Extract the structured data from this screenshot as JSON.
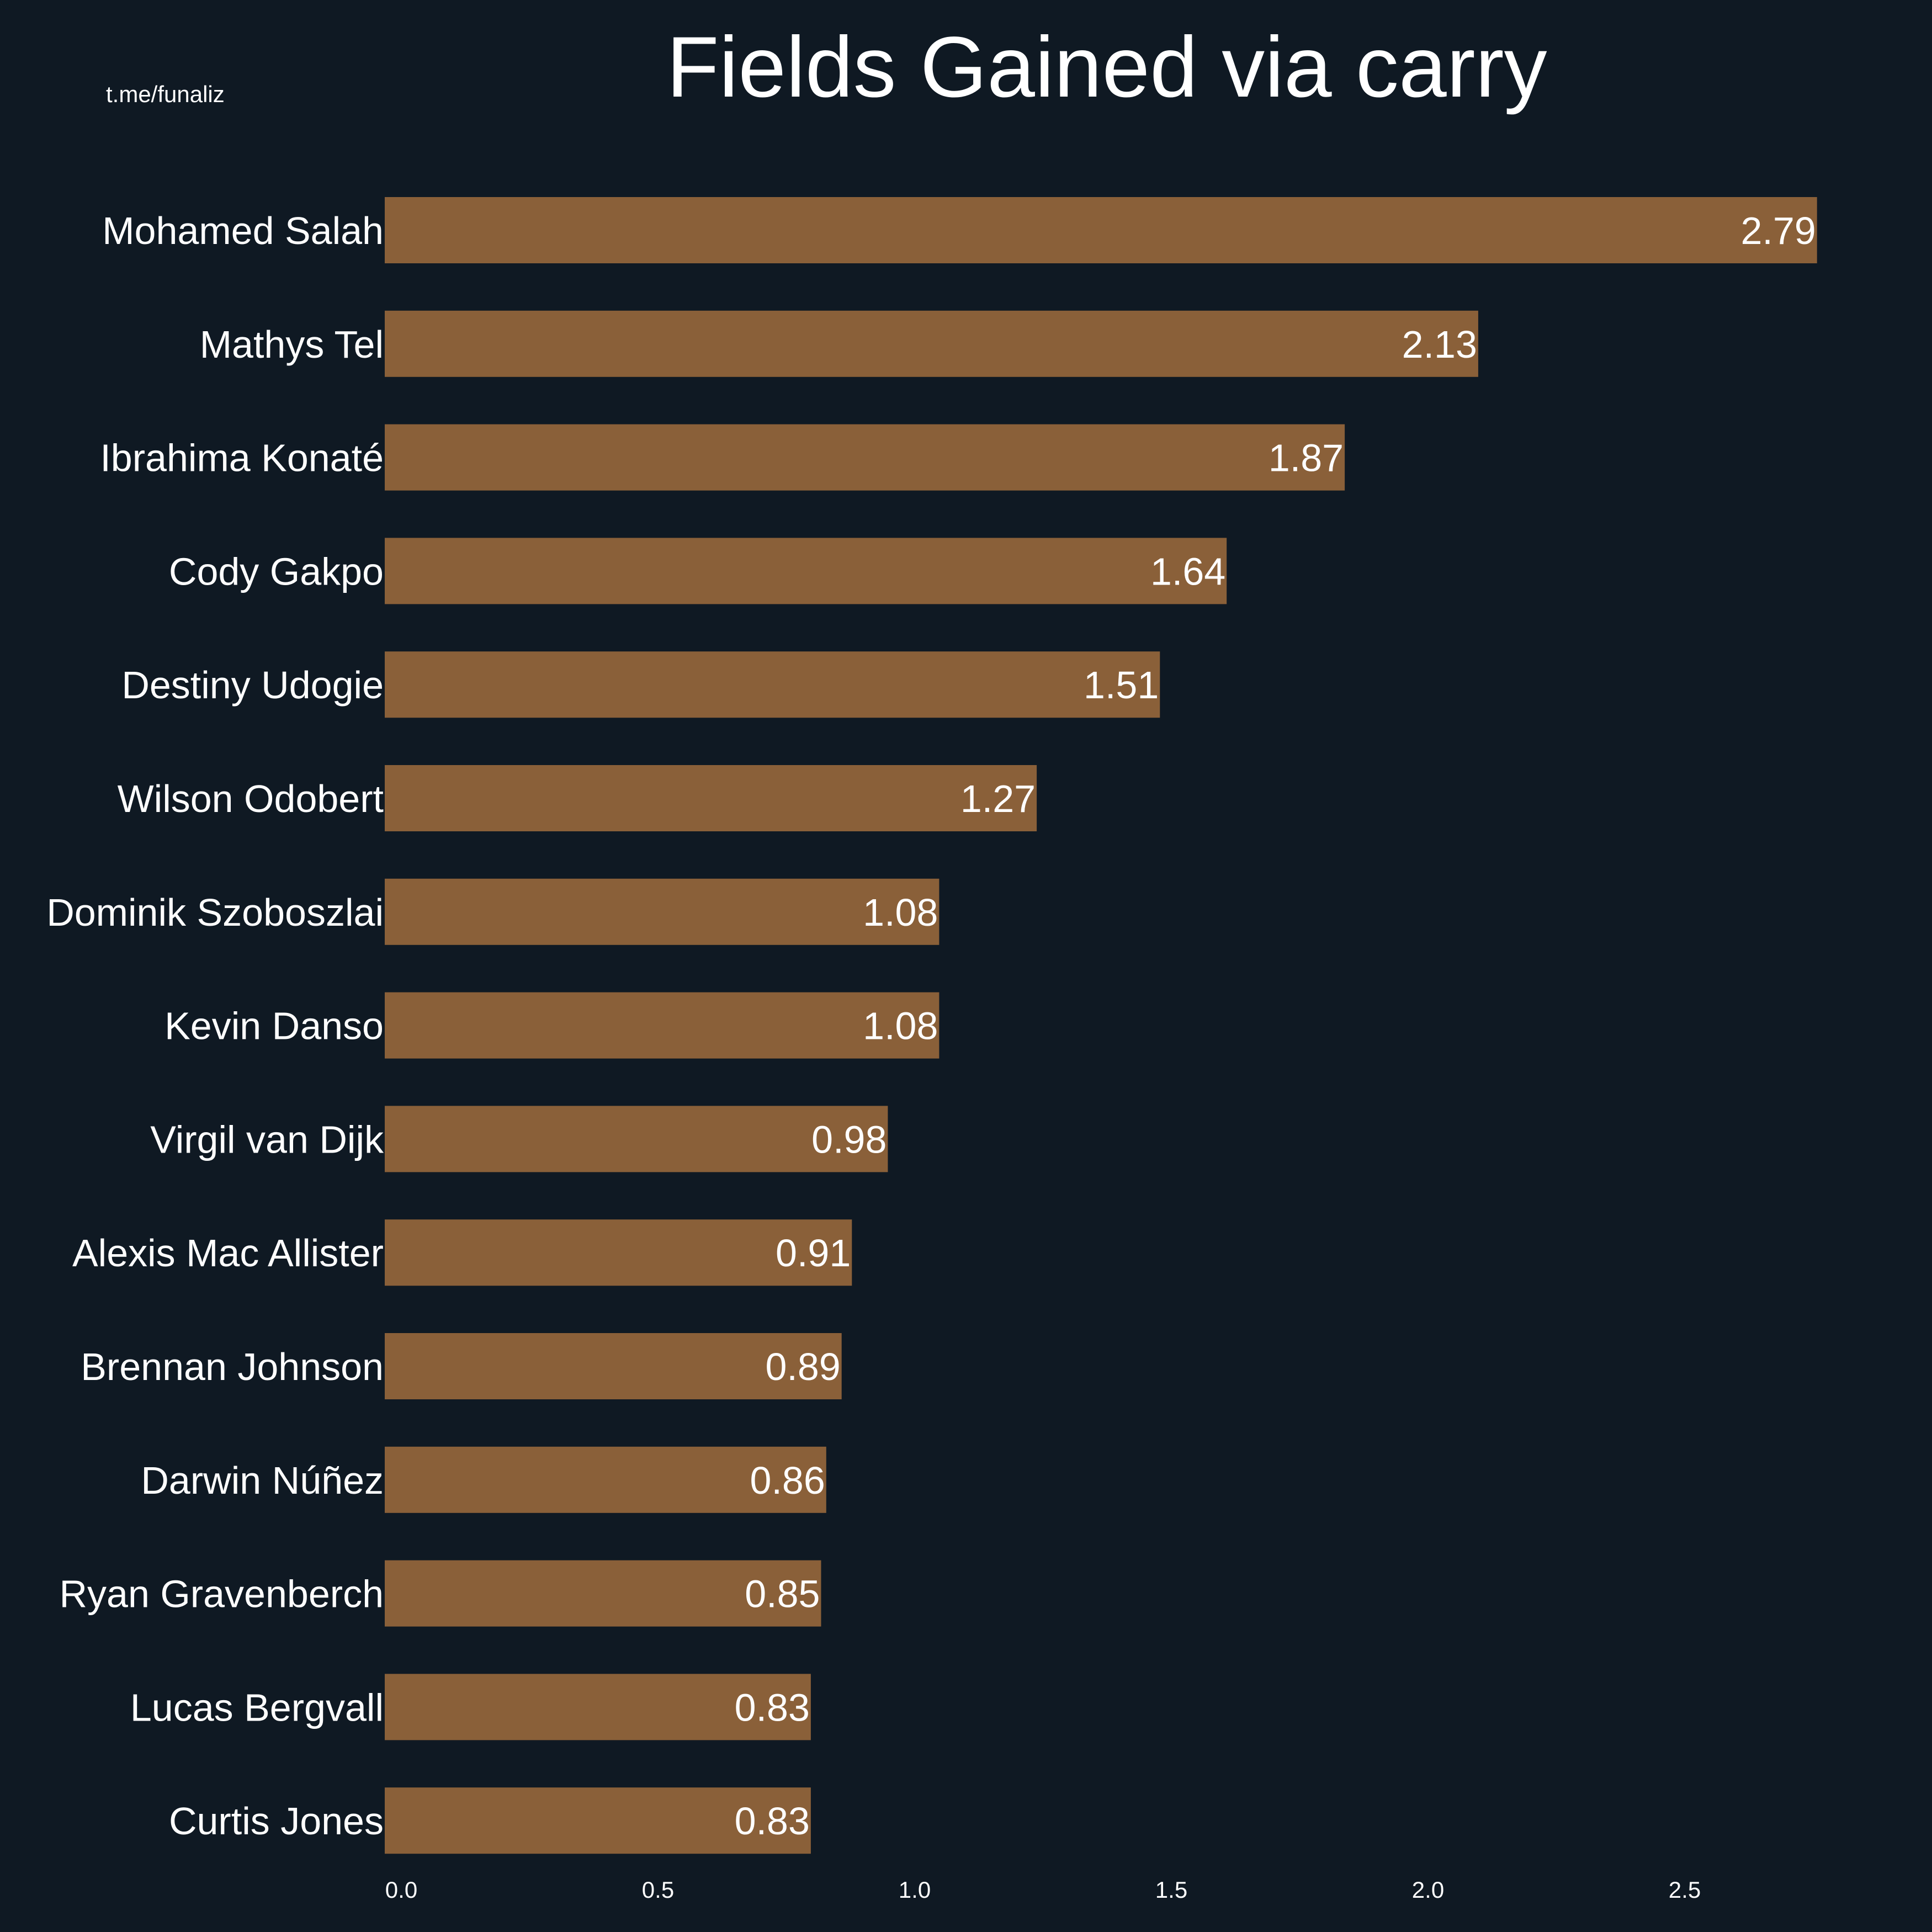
{
  "watermark": "t.me/funaliz",
  "colors": {
    "background": "#0f1923",
    "bar": "#8a6039",
    "text": "#ffffff"
  },
  "chart_data": {
    "type": "bar",
    "orientation": "horizontal",
    "title": "Fields Gained via carry",
    "xlabel": "",
    "ylabel": "",
    "xlim": [
      0,
      2.96
    ],
    "xticks": [
      0.0,
      0.5,
      1.0,
      1.5,
      2.0,
      2.5
    ],
    "xtick_labels": [
      "0.0",
      "0.5",
      "1.0",
      "1.5",
      "2.0",
      "2.5"
    ],
    "grid": false,
    "categories": [
      "Mohamed Salah",
      "Mathys Tel",
      "Ibrahima Konaté",
      "Cody Gakpo",
      "Destiny Udogie",
      "Wilson Odobert",
      "Dominik Szoboszlai",
      "Kevin Danso",
      "Virgil van Dijk",
      "Alexis Mac Allister",
      "Brennan Johnson",
      "Darwin Núñez",
      "Ryan Gravenberch",
      "Lucas Bergvall",
      "Curtis Jones"
    ],
    "values": [
      2.79,
      2.13,
      1.87,
      1.64,
      1.51,
      1.27,
      1.08,
      1.08,
      0.98,
      0.91,
      0.89,
      0.86,
      0.85,
      0.83,
      0.83
    ],
    "value_labels": [
      "2.79",
      "2.13",
      "1.87",
      "1.64",
      "1.51",
      "1.27",
      "1.08",
      "1.08",
      "0.98",
      "0.91",
      "0.89",
      "0.86",
      "0.85",
      "0.83",
      "0.83"
    ]
  }
}
